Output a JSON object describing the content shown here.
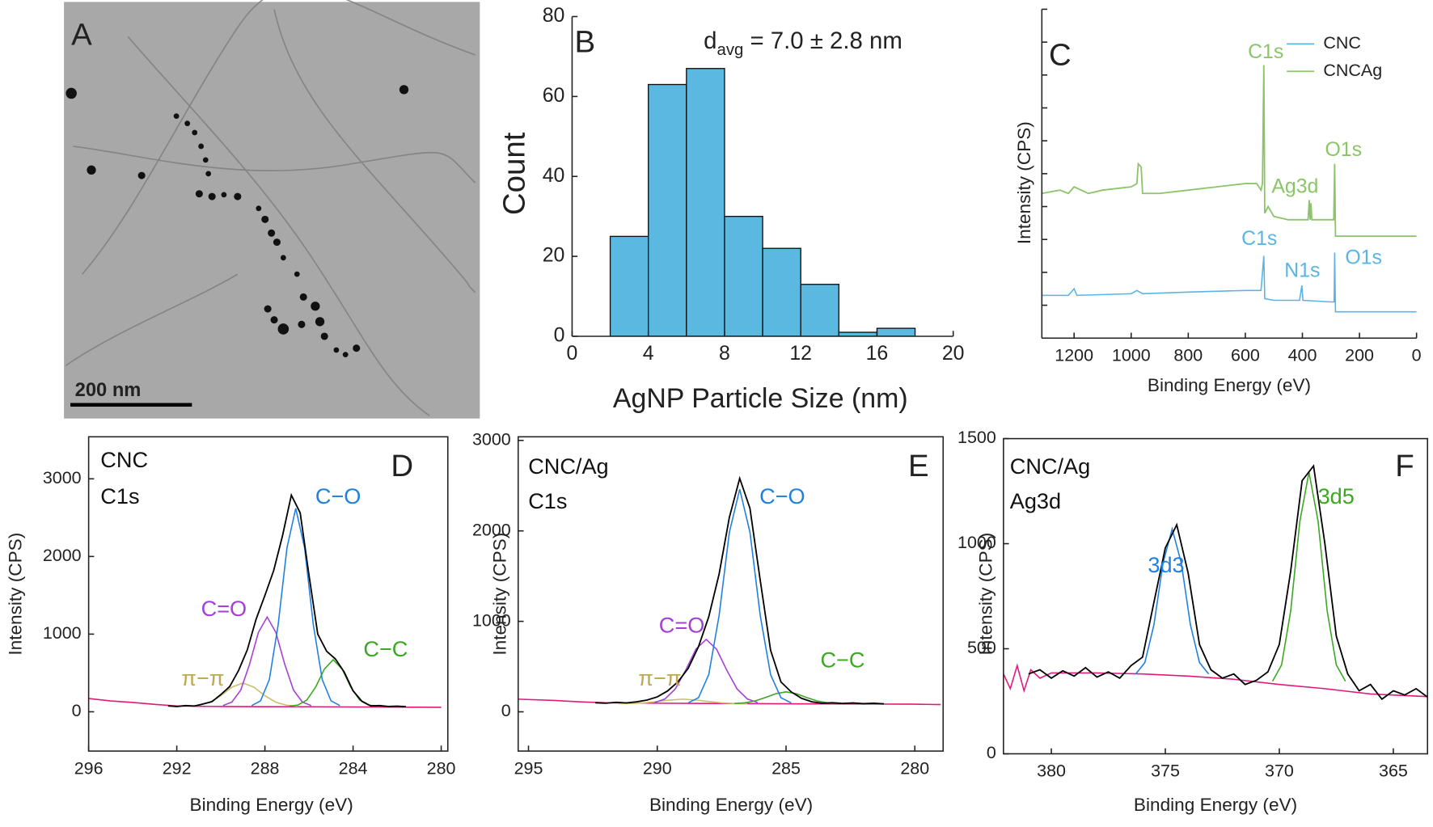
{
  "chart_data": [
    {
      "type": "image",
      "label": "A",
      "scale_bar": "200 nm"
    },
    {
      "type": "histogram",
      "label": "B",
      "annotation": {
        "text": "d",
        "sub": "avg",
        "rest": " = 7.0 ± 2.8 nm"
      },
      "bins": [
        2,
        4,
        6,
        8,
        10,
        12,
        14,
        16,
        18
      ],
      "values": [
        25,
        63,
        67,
        30,
        22,
        13,
        1,
        2
      ],
      "color": "#5bb8e0",
      "xlabel": "AgNP Particle Size (nm)",
      "ylabel": "Count",
      "xlim": [
        0,
        20
      ],
      "xticks": [
        0,
        4,
        8,
        12,
        16,
        20
      ],
      "ylim": [
        0,
        80
      ],
      "yticks": [
        0,
        20,
        40,
        60,
        80
      ]
    },
    {
      "type": "line",
      "label": "C",
      "legend": "upper right",
      "ytick_labels": false,
      "xlabel": "Binding Energy (eV)",
      "ylabel": "Intensity (CPS)",
      "xlim": [
        1313,
        0
      ],
      "xticks": [
        1200,
        1000,
        800,
        600,
        400,
        200,
        0
      ],
      "ylim": [
        0,
        100
      ],
      "yticks": [
        0,
        10,
        20,
        30,
        40,
        50,
        60,
        70,
        80,
        90,
        100
      ],
      "series": [
        {
          "name": "CNC",
          "color": "#5ab4e5",
          "x": [
            1313,
            1220,
            1200,
            1190,
            1000,
            980,
            960,
            800,
            600,
            545,
            535,
            532,
            500,
            410,
            402,
            398,
            300,
            289,
            287,
            284,
            0
          ],
          "values": [
            13,
            13,
            15,
            13,
            13.5,
            14.5,
            13.5,
            14,
            14.5,
            14.5,
            25,
            12,
            11.5,
            11.5,
            16,
            11.5,
            11,
            11,
            26,
            8,
            8
          ]
        },
        {
          "name": "CNCAg",
          "color": "#8cc46a",
          "x": [
            1313,
            1250,
            1220,
            1200,
            1150,
            1100,
            1000,
            980,
            975,
            965,
            960,
            900,
            800,
            700,
            600,
            560,
            545,
            540,
            535,
            532,
            520,
            500,
            450,
            380,
            376,
            373,
            370,
            367,
            300,
            290,
            287,
            284,
            200,
            100,
            0
          ],
          "values": [
            44,
            45,
            44,
            46,
            44,
            45,
            46,
            47,
            53,
            52,
            44,
            44,
            45,
            46,
            47,
            47,
            45,
            47,
            83,
            38,
            40,
            37,
            36,
            36,
            42,
            36,
            41,
            36,
            36,
            36,
            53,
            31,
            31,
            31,
            31
          ]
        }
      ],
      "annotations": [
        {
          "text": "C1s",
          "color": "#8cc46a"
        },
        {
          "text": "O1s",
          "color": "#8cc46a"
        },
        {
          "text": "Ag3d",
          "color": "#8cc46a"
        },
        {
          "text": "C1s",
          "color": "#5ab4e5"
        },
        {
          "text": "N1s",
          "color": "#5ab4e5"
        },
        {
          "text": "O1s",
          "color": "#5ab4e5"
        }
      ]
    },
    {
      "type": "line",
      "label": "D",
      "xlabel": "Binding Energy (eV)",
      "ylabel": "Intensity (CPS)",
      "xlim": [
        296,
        279.7
      ],
      "xticks": [
        296,
        292,
        288,
        284,
        280
      ],
      "ylim": [
        -506,
        3541
      ],
      "yticks": [
        0,
        1000,
        2000,
        3000
      ],
      "series": [
        {
          "color": "#e0197d",
          "x": [
            296,
            295,
            294,
            293,
            292,
            291,
            290,
            288,
            286,
            284,
            282,
            280
          ],
          "values": [
            170,
            140,
            120,
            95,
            75,
            70,
            68,
            66,
            64,
            62,
            60,
            58
          ]
        },
        {
          "color": "#cdbd6a",
          "x": [
            291.5,
            291.0,
            290.5,
            290.0,
            289.5,
            289.0,
            288.5,
            288.0,
            287.5,
            287.0,
            286.5
          ],
          "values": [
            72,
            83,
            122,
            207,
            317,
            370,
            317,
            207,
            122,
            83,
            72
          ]
        },
        {
          "color": "#a43fd6",
          "x": [
            289.9,
            289.5,
            289.1,
            288.7,
            288.3,
            287.9,
            287.5,
            287.1,
            286.7,
            286.3,
            285.9
          ],
          "values": [
            80,
            125,
            279,
            609,
            1021,
            1220,
            1021,
            609,
            279,
            125,
            80
          ]
        },
        {
          "color": "#3aa820",
          "x": [
            286.9,
            286.5,
            286.1,
            285.7,
            285.3,
            284.9,
            284.5,
            284.1,
            283.7,
            283.3,
            282.9
          ],
          "values": [
            72,
            87,
            151,
            316,
            550,
            670,
            550,
            316,
            151,
            87,
            72
          ]
        },
        {
          "color": "#1f80e0",
          "x": [
            288.6,
            288.2,
            287.8,
            287.4,
            287.0,
            286.6,
            286.2,
            285.8,
            285.4,
            285.0,
            284.6
          ],
          "values": [
            80,
            141,
            414,
            1115,
            2110,
            2620,
            2110,
            1115,
            414,
            141,
            80
          ]
        },
        {
          "color": "#000000",
          "x": [
            292.4,
            292.0,
            291.6,
            291.2,
            290.8,
            290.4,
            290.0,
            289.6,
            289.2,
            288.8,
            288.4,
            288.0,
            287.6,
            287.2,
            286.8,
            286.4,
            286.0,
            285.6,
            285.2,
            284.8,
            284.4,
            284.0,
            283.6,
            283.2,
            282.8,
            282.4,
            282.0,
            281.6
          ],
          "values": [
            75,
            68,
            80,
            74,
            101,
            130,
            222,
            325,
            530,
            798,
            1192,
            1500,
            1820,
            2270,
            2790,
            2560,
            1760,
            1000,
            780,
            680,
            510,
            270,
            135,
            76,
            80,
            68,
            73,
            66
          ]
        }
      ],
      "annotations": [
        {
          "text": "CNC",
          "color": "#111111"
        },
        {
          "text": "C1s",
          "color": "#111111"
        },
        {
          "text": "C−O",
          "color": "#1f80e0"
        },
        {
          "text": "C=O",
          "color": "#a43fd6"
        },
        {
          "text": "C−C",
          "color": "#3aa820"
        },
        {
          "text": "π−π",
          "color": "#c0a850"
        }
      ]
    },
    {
      "type": "line",
      "label": "E",
      "xlabel": "Binding Energy (eV)",
      "ylabel": "Intensity (CPS)",
      "xlim": [
        295.4,
        278.9
      ],
      "xticks": [
        295,
        290,
        285,
        280
      ],
      "ylim": [
        -434,
        3040
      ],
      "yticks": [
        0,
        1000,
        2000,
        3000
      ],
      "series": [
        {
          "color": "#e0197d",
          "x": [
            295.4,
            294,
            293,
            292,
            290,
            288,
            286,
            284,
            282,
            280,
            279
          ],
          "values": [
            140,
            125,
            110,
            100,
            95,
            92,
            90,
            88,
            86,
            84,
            80
          ]
        },
        {
          "color": "#cdbd6a",
          "x": [
            291.5,
            291.0,
            290.5,
            290.0,
            289.5,
            289.0,
            288.5,
            288.0,
            287.5,
            287.0,
            286.5
          ],
          "values": [
            90,
            92,
            99,
            113,
            131,
            140,
            131,
            113,
            99,
            92,
            90
          ]
        },
        {
          "color": "#a43fd6",
          "x": [
            290.1,
            289.7,
            289.3,
            288.9,
            288.5,
            288.1,
            287.7,
            287.3,
            286.9,
            286.5,
            286.1
          ],
          "values": [
            102,
            142,
            253,
            459,
            693,
            800,
            693,
            459,
            253,
            142,
            102
          ]
        },
        {
          "color": "#3aa820",
          "x": [
            287.0,
            286.6,
            286.2,
            285.8,
            285.4,
            285.0,
            284.6,
            284.2,
            283.8,
            283.4,
            283.0
          ],
          "values": [
            92,
            99,
            120,
            158,
            200,
            220,
            200,
            158,
            120,
            99,
            92
          ]
        },
        {
          "color": "#1f80e0",
          "x": [
            288.8,
            288.4,
            288.0,
            287.6,
            287.2,
            286.8,
            286.4,
            286.0,
            285.6,
            285.2,
            284.8
          ],
          "values": [
            99,
            156,
            410,
            1062,
            1986,
            2460,
            1986,
            1062,
            410,
            156,
            99
          ]
        },
        {
          "color": "#000000",
          "x": [
            292.4,
            292.0,
            291.6,
            291.2,
            290.8,
            290.4,
            290.0,
            289.6,
            289.2,
            288.8,
            288.4,
            288.0,
            287.6,
            287.2,
            286.8,
            286.4,
            286.0,
            285.6,
            285.2,
            284.8,
            284.4,
            284.0,
            283.6,
            283.2,
            282.8,
            282.4,
            282.0,
            281.6,
            281.2
          ],
          "values": [
            100,
            95,
            105,
            98,
            110,
            130,
            165,
            230,
            330,
            480,
            720,
            1050,
            1520,
            2150,
            2580,
            2250,
            1450,
            680,
            330,
            220,
            150,
            110,
            95,
            100,
            92,
            98,
            90,
            95,
            88
          ]
        }
      ],
      "annotations": [
        {
          "text": "CNC/Ag",
          "color": "#111111"
        },
        {
          "text": "C1s",
          "color": "#111111"
        },
        {
          "text": "C−O",
          "color": "#1f80e0"
        },
        {
          "text": "C=O",
          "color": "#a43fd6"
        },
        {
          "text": "C−C",
          "color": "#3aa820"
        },
        {
          "text": "π−π",
          "color": "#c0a850"
        }
      ]
    },
    {
      "type": "line",
      "label": "F",
      "xlabel": "Binding Energy (eV)",
      "ylabel": "Intensity (CPS)",
      "xlim": [
        382.1,
        363.5
      ],
      "xticks": [
        380,
        375,
        370,
        365
      ],
      "ylim": [
        0,
        1500
      ],
      "yticks": [
        0,
        500,
        1000,
        1500
      ],
      "series": [
        {
          "color": "#e0197d",
          "x": [
            382.1,
            381.8,
            381.5,
            381.2,
            380.9,
            380.5,
            380,
            378,
            376,
            374,
            372,
            370,
            368,
            366,
            364,
            363.5
          ],
          "values": [
            380,
            310,
            420,
            300,
            400,
            360,
            385,
            385,
            380,
            370,
            355,
            330,
            310,
            285,
            275,
            272
          ]
        },
        {
          "color": "#1f80e0",
          "x": [
            376.3,
            375.9,
            375.5,
            375.1,
            374.7,
            374.3,
            373.9,
            373.5,
            373.1
          ],
          "values": [
            380,
            434,
            613,
            908,
            1070,
            908,
            613,
            434,
            380
          ]
        },
        {
          "color": "#3aa820",
          "x": [
            370.3,
            369.9,
            369.5,
            369.1,
            368.7,
            368.3,
            367.9,
            367.5,
            367.1
          ],
          "values": [
            345,
            423,
            680,
            1106,
            1340,
            1106,
            680,
            423,
            345
          ]
        },
        {
          "color": "#000000",
          "x": [
            381,
            380.5,
            380,
            379.5,
            379,
            378.5,
            378,
            377.5,
            377,
            376.5,
            376,
            375.5,
            375,
            374.5,
            374,
            373.5,
            373,
            372.5,
            372,
            371.5,
            371,
            370.5,
            370,
            369.5,
            369,
            368.5,
            368,
            367.5,
            367,
            366.5,
            366,
            365.5,
            365,
            364.5,
            364,
            363.5
          ],
          "values": [
            380,
            400,
            360,
            395,
            370,
            410,
            365,
            390,
            360,
            420,
            460,
            720,
            980,
            1090,
            860,
            520,
            400,
            360,
            380,
            330,
            350,
            390,
            520,
            870,
            1300,
            1370,
            1000,
            560,
            380,
            300,
            330,
            260,
            300,
            280,
            310,
            270
          ]
        }
      ],
      "annotations": [
        {
          "text": "CNC/Ag",
          "color": "#111111"
        },
        {
          "text": "Ag3d",
          "color": "#111111"
        },
        {
          "text": "3d3",
          "color": "#1f80e0"
        },
        {
          "text": "3d5",
          "color": "#3aa820"
        }
      ]
    }
  ]
}
